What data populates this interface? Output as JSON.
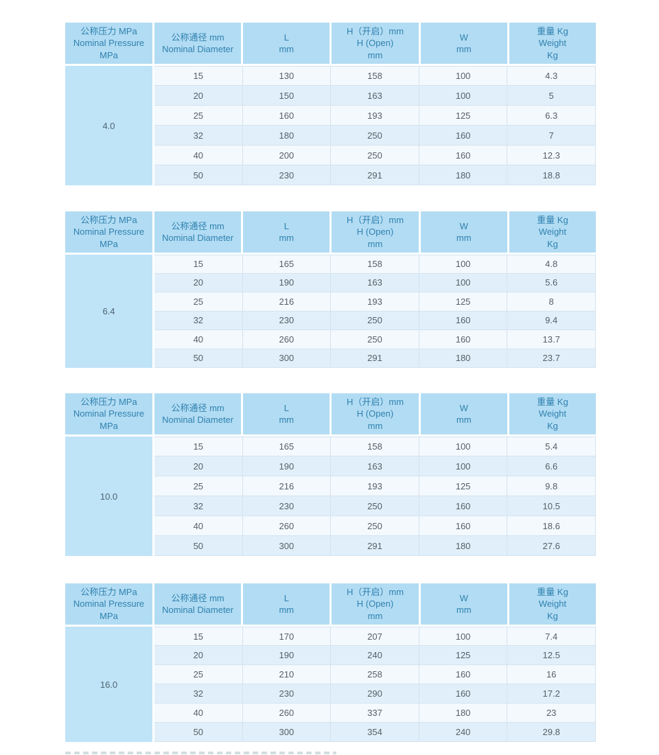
{
  "page": {
    "background": "#ffffff"
  },
  "colors": {
    "header_bg": "#b2dcf3",
    "header_text": "#2f81b0",
    "pressure_cell_bg": "#bfe3f7",
    "row_odd_bg": "#f3f9fd",
    "row_even_bg": "#e1effa",
    "body_text": "#555f66",
    "grid_border": "#d3e3ef"
  },
  "columns": [
    {
      "id": "pressure",
      "lines": [
        "公称压力 MPa",
        "Nominal Pressure",
        "MPa"
      ]
    },
    {
      "id": "diameter",
      "lines": [
        "公称通径 mm",
        "Nominal Diameter"
      ]
    },
    {
      "id": "length",
      "lines": [
        "L",
        "mm"
      ]
    },
    {
      "id": "height",
      "lines": [
        "H（开启）mm",
        "H (Open)",
        "mm"
      ]
    },
    {
      "id": "width",
      "lines": [
        "W",
        "mm"
      ]
    },
    {
      "id": "weight",
      "lines": [
        "重量 Kg",
        "Weight",
        "Kg"
      ]
    }
  ],
  "tables": [
    {
      "pressure": "4.0",
      "rows": [
        [
          "15",
          "130",
          "158",
          "100",
          "4.3"
        ],
        [
          "20",
          "150",
          "163",
          "100",
          "5"
        ],
        [
          "25",
          "160",
          "193",
          "125",
          "6.3"
        ],
        [
          "32",
          "180",
          "250",
          "160",
          "7"
        ],
        [
          "40",
          "200",
          "250",
          "160",
          "12.3"
        ],
        [
          "50",
          "230",
          "291",
          "180",
          "18.8"
        ]
      ]
    },
    {
      "pressure": "6.4",
      "rows": [
        [
          "15",
          "165",
          "158",
          "100",
          "4.8"
        ],
        [
          "20",
          "190",
          "163",
          "100",
          "5.6"
        ],
        [
          "25",
          "216",
          "193",
          "125",
          "8"
        ],
        [
          "32",
          "230",
          "250",
          "160",
          "9.4"
        ],
        [
          "40",
          "260",
          "250",
          "160",
          "13.7"
        ],
        [
          "50",
          "300",
          "291",
          "180",
          "23.7"
        ]
      ]
    },
    {
      "pressure": "10.0",
      "rows": [
        [
          "15",
          "165",
          "158",
          "100",
          "5.4"
        ],
        [
          "20",
          "190",
          "163",
          "100",
          "6.6"
        ],
        [
          "25",
          "216",
          "193",
          "125",
          "9.8"
        ],
        [
          "32",
          "230",
          "250",
          "160",
          "10.5"
        ],
        [
          "40",
          "260",
          "250",
          "160",
          "18.6"
        ],
        [
          "50",
          "300",
          "291",
          "180",
          "27.6"
        ]
      ]
    },
    {
      "pressure": "16.0",
      "rows": [
        [
          "15",
          "170",
          "207",
          "100",
          "7.4"
        ],
        [
          "20",
          "190",
          "240",
          "125",
          "12.5"
        ],
        [
          "25",
          "210",
          "258",
          "160",
          "16"
        ],
        [
          "32",
          "230",
          "290",
          "160",
          "17.2"
        ],
        [
          "40",
          "260",
          "337",
          "180",
          "23"
        ],
        [
          "50",
          "300",
          "354",
          "240",
          "29.8"
        ]
      ]
    }
  ]
}
